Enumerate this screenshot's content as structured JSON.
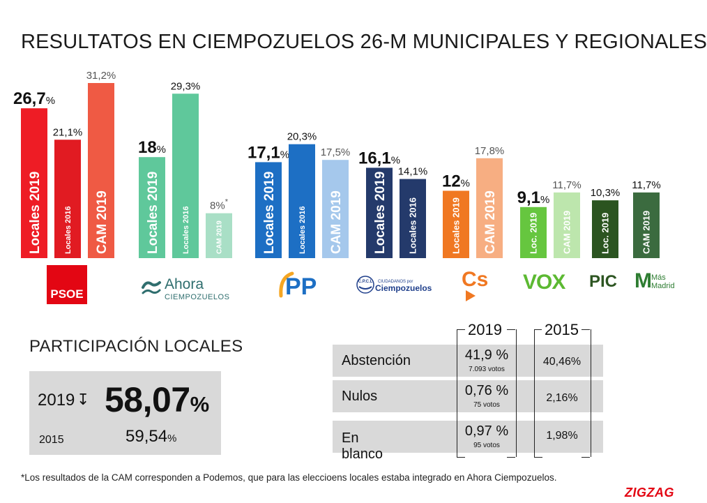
{
  "title": "RESULTATOS EN CIEMPOZUELOS 26-M MUNICIPALES Y REGIONALES",
  "chart_data": {
    "type": "bar",
    "groups": [
      {
        "party": "PSOE",
        "bars": [
          {
            "label": "Locales 2019",
            "value": 26.7,
            "display": "26,7",
            "color": "#ee1c25"
          },
          {
            "label": "Locales 2016",
            "value": 21.1,
            "display": "21,1",
            "color": "#e11b22"
          },
          {
            "label": "CAM 2019",
            "value": 31.2,
            "display": "31,2",
            "color": "#ef5a44"
          }
        ]
      },
      {
        "party": "Ahora Ciempozuelos",
        "bars": [
          {
            "label": "Locales 2019",
            "value": 18,
            "display": "18",
            "color": "#5fc89b"
          },
          {
            "label": "Locales 2016",
            "value": 29.3,
            "display": "29,3",
            "color": "#5fc89b"
          },
          {
            "label": "CAM 2019",
            "value": 8,
            "display": "8",
            "color": "#a9dfc6",
            "note": "*"
          }
        ]
      },
      {
        "party": "PP",
        "bars": [
          {
            "label": "Locales 2019",
            "value": 17.1,
            "display": "17,1",
            "color": "#1d6fc4"
          },
          {
            "label": "Locales 2016",
            "value": 20.3,
            "display": "20,3",
            "color": "#1d6fc4"
          },
          {
            "label": "CAM 2019",
            "value": 17.5,
            "display": "17,5",
            "color": "#a5c8ec"
          }
        ]
      },
      {
        "party": "CPCL Ciudadanos por Ciempozuelos",
        "bars": [
          {
            "label": "Locales 2019",
            "value": 16.1,
            "display": "16,1",
            "color": "#243a6b"
          },
          {
            "label": "Locales 2016",
            "value": 14.1,
            "display": "14,1",
            "color": "#243a6b"
          }
        ]
      },
      {
        "party": "Cs",
        "bars": [
          {
            "label": "Locales 2019",
            "value": 12,
            "display": "12",
            "color": "#f07822"
          },
          {
            "label": "CAM 2019",
            "value": 17.8,
            "display": "17,8",
            "color": "#f7ae82"
          }
        ]
      },
      {
        "party": "VOX",
        "bars": [
          {
            "label": "Loc. 2019",
            "value": 9.1,
            "display": "9,1",
            "color": "#66c63f"
          },
          {
            "label": "CAM 2019",
            "value": 11.7,
            "display": "11,7",
            "color": "#bde6ad"
          }
        ]
      },
      {
        "party": "PIC",
        "bars": [
          {
            "label": "Loc. 2019",
            "value": 10.3,
            "display": "10,3",
            "color": "#2b5420"
          }
        ]
      },
      {
        "party": "Más Madrid",
        "bars": [
          {
            "label": "CAM 2019",
            "value": 11.7,
            "display": "11,7",
            "color": "#3b6b3f"
          }
        ]
      }
    ],
    "unit": "%"
  },
  "logos": {
    "psoe": "PSOE",
    "ahora_word": "Ahora",
    "ahora_sub": "CIEMPOZUELOS",
    "pp": "PP",
    "cpcl_top": "C.P.C.L",
    "cpcl_small": "CIUDADANOS por",
    "cpcl_name": "Ciempozuelos",
    "cs": "Cs",
    "vox": "VOX",
    "pic": "PIC",
    "masmadrid_m": "M",
    "masmadrid_text1": "Más",
    "masmadrid_text2": "Madrid"
  },
  "participation": {
    "title": "PARTICIPACIÓN LOCALES",
    "year_2019": "2019",
    "value_2019": "58,07",
    "year_2015": "2015",
    "value_2015": "59,54",
    "unit": "%"
  },
  "table": {
    "year_a": "2019",
    "year_b": "2015",
    "rows": [
      {
        "label": "Abstención",
        "v2019": "41,9 %",
        "v2019_votes": "7.093 votos",
        "v2015": "40,46%"
      },
      {
        "label": "Nulos",
        "v2019": "0,76 %",
        "v2019_votes": "75 votos",
        "v2015": "2,16%"
      },
      {
        "label": "En blanco",
        "v2019": "0,97 %",
        "v2019_votes": "95 votos",
        "v2015": "1,98%"
      }
    ]
  },
  "footnote": "*Los resultados de la CAM corresponden a Podemos, que para las eleccioens locales estaba integrado en Ahora Ciempozuelos.",
  "brand": "ZIGZAG"
}
